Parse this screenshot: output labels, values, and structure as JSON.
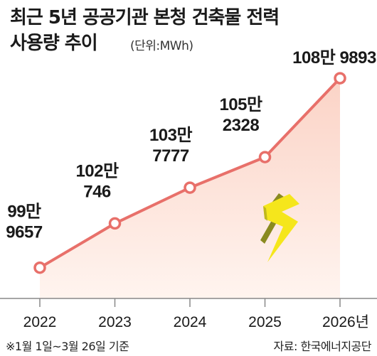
{
  "header": {
    "title_line1": "최근 5년 공공기관 본청 건축물 전력",
    "title_line2": "사용량 추이",
    "unit": "(단위:MWh)"
  },
  "footer": {
    "note": "※1월 1일~3월 26일 기준",
    "source": "자료: 한국에너지공단"
  },
  "colors": {
    "line": "#e8706a",
    "area_top": "#fbd3c6",
    "area_bottom": "#fff4ef",
    "bolt_front": "#f5e61c",
    "bolt_side": "#8a8a20"
  },
  "icons": {
    "decoration": "lightning-bolt-icon"
  },
  "chart_data": {
    "type": "area",
    "title": "최근 5년 공공기관 본청 건축물 전력 사용량 추이",
    "unit": "MWh",
    "categories": [
      "2022",
      "2023",
      "2024",
      "2025",
      "2026년"
    ],
    "values": [
      999657,
      1020746,
      1037777,
      1052328,
      1089893
    ],
    "value_labels": [
      [
        "99만",
        "9657"
      ],
      [
        "102만",
        "746"
      ],
      [
        "103만",
        "7777"
      ],
      [
        "105만",
        "2328"
      ],
      [
        "108만 9893"
      ]
    ],
    "xlabel": "",
    "ylabel": "",
    "ylim": [
      985000,
      1095000
    ],
    "grid": false,
    "legend": "none"
  }
}
